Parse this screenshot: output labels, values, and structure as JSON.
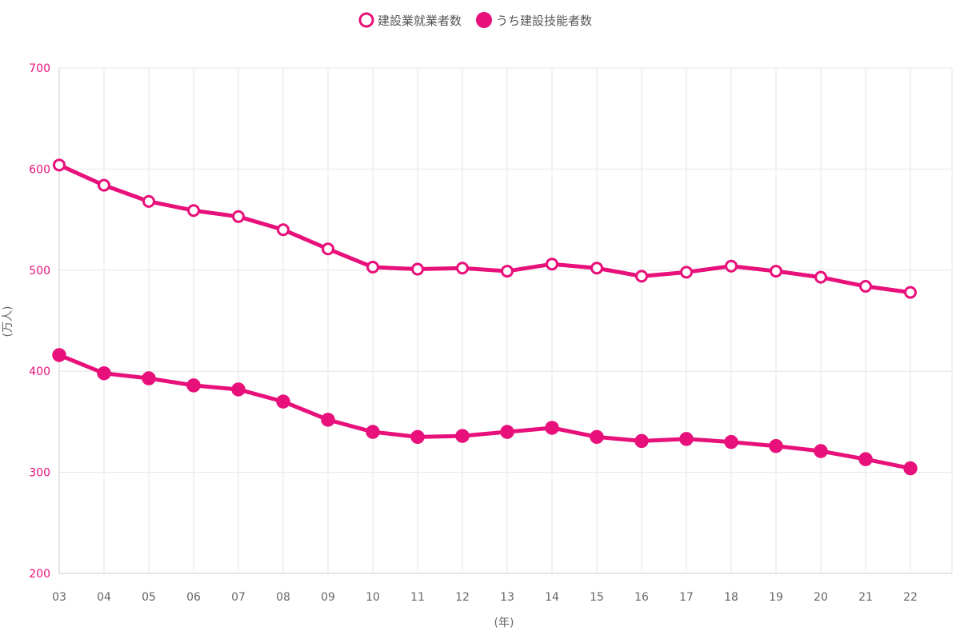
{
  "chart_data": {
    "type": "line",
    "x": [
      "03",
      "04",
      "05",
      "06",
      "07",
      "08",
      "09",
      "10",
      "11",
      "12",
      "13",
      "14",
      "15",
      "16",
      "17",
      "18",
      "19",
      "20",
      "21",
      "22"
    ],
    "series": [
      {
        "name": "建設業就業者数",
        "marker": "hollow-circle",
        "values": [
          604,
          584,
          568,
          559,
          553,
          540,
          521,
          503,
          501,
          502,
          499,
          506,
          502,
          494,
          498,
          504,
          499,
          493,
          484,
          478
        ]
      },
      {
        "name": "うち建設技能者数",
        "marker": "filled-circle",
        "values": [
          416,
          398,
          393,
          386,
          382,
          370,
          352,
          340,
          335,
          336,
          340,
          344,
          335,
          331,
          333,
          330,
          326,
          321,
          313,
          304
        ]
      }
    ],
    "yticks": [
      "200",
      "300",
      "400",
      "500",
      "600",
      "700"
    ],
    "ylim": [
      200,
      700
    ],
    "xlabel": "(年)",
    "ylabel": "(万人)",
    "grid": true,
    "legend_position": "top-center",
    "colors": {
      "line": "#e8107a",
      "ytick_text": "#e8107a",
      "grid": "#e6e6e6",
      "axis": "#cccccc"
    }
  }
}
